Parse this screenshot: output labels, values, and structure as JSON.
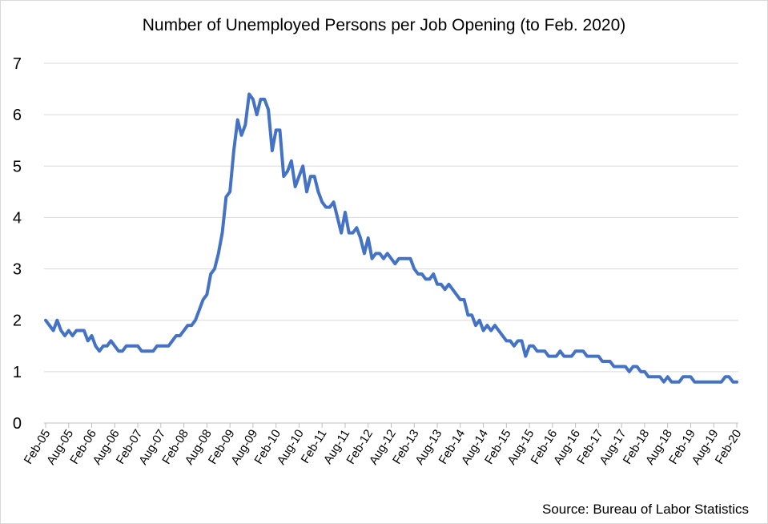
{
  "chart_data": {
    "type": "line",
    "title": "Number of Unemployed Persons per Job Opening (to Feb. 2020)",
    "source": "Source: Bureau of Labor Statistics",
    "xlabel": "",
    "ylabel": "",
    "ylim": [
      0,
      7
    ],
    "yticks": [
      "0",
      "1",
      "2",
      "3",
      "4",
      "5",
      "6",
      "7"
    ],
    "grid": true,
    "legend": "none",
    "line_color": "#4472c4",
    "start": "Feb-05",
    "xticks": [
      "Feb-05",
      "Aug-05",
      "Feb-06",
      "Aug-06",
      "Feb-07",
      "Aug-07",
      "Feb-08",
      "Aug-08",
      "Feb-09",
      "Aug-09",
      "Feb-10",
      "Aug-10",
      "Feb-11",
      "Aug-11",
      "Feb-12",
      "Aug-12",
      "Feb-13",
      "Aug-13",
      "Feb-14",
      "Aug-14",
      "Feb-15",
      "Aug-15",
      "Feb-16",
      "Aug-16",
      "Feb-17",
      "Aug-17",
      "Feb-18",
      "Aug-18",
      "Feb-19",
      "Aug-19",
      "Feb-20"
    ],
    "values": [
      2.0,
      1.9,
      1.8,
      2.0,
      1.8,
      1.7,
      1.8,
      1.7,
      1.8,
      1.8,
      1.8,
      1.6,
      1.7,
      1.5,
      1.4,
      1.5,
      1.5,
      1.6,
      1.5,
      1.4,
      1.4,
      1.5,
      1.5,
      1.5,
      1.5,
      1.4,
      1.4,
      1.4,
      1.4,
      1.5,
      1.5,
      1.5,
      1.5,
      1.6,
      1.7,
      1.7,
      1.8,
      1.9,
      1.9,
      2.0,
      2.2,
      2.4,
      2.5,
      2.9,
      3.0,
      3.3,
      3.7,
      4.4,
      4.5,
      5.3,
      5.9,
      5.6,
      5.8,
      6.4,
      6.3,
      6.0,
      6.3,
      6.3,
      6.1,
      5.3,
      5.7,
      5.7,
      4.8,
      4.9,
      5.1,
      4.6,
      4.8,
      5.0,
      4.5,
      4.8,
      4.8,
      4.5,
      4.3,
      4.2,
      4.2,
      4.3,
      4.0,
      3.7,
      4.1,
      3.7,
      3.7,
      3.8,
      3.6,
      3.3,
      3.6,
      3.2,
      3.3,
      3.3,
      3.2,
      3.3,
      3.2,
      3.1,
      3.2,
      3.2,
      3.2,
      3.2,
      3.0,
      2.9,
      2.9,
      2.8,
      2.8,
      2.9,
      2.7,
      2.7,
      2.6,
      2.7,
      2.6,
      2.5,
      2.4,
      2.4,
      2.1,
      2.1,
      1.9,
      2.0,
      1.8,
      1.9,
      1.8,
      1.9,
      1.8,
      1.7,
      1.6,
      1.6,
      1.5,
      1.6,
      1.6,
      1.3,
      1.5,
      1.5,
      1.4,
      1.4,
      1.4,
      1.3,
      1.3,
      1.3,
      1.4,
      1.3,
      1.3,
      1.3,
      1.4,
      1.4,
      1.4,
      1.3,
      1.3,
      1.3,
      1.3,
      1.2,
      1.2,
      1.2,
      1.1,
      1.1,
      1.1,
      1.1,
      1.0,
      1.1,
      1.1,
      1.0,
      1.0,
      0.9,
      0.9,
      0.9,
      0.9,
      0.8,
      0.9,
      0.8,
      0.8,
      0.8,
      0.9,
      0.9,
      0.9,
      0.8,
      0.8,
      0.8,
      0.8,
      0.8,
      0.8,
      0.8,
      0.8,
      0.9,
      0.9,
      0.8,
      0.8
    ]
  }
}
